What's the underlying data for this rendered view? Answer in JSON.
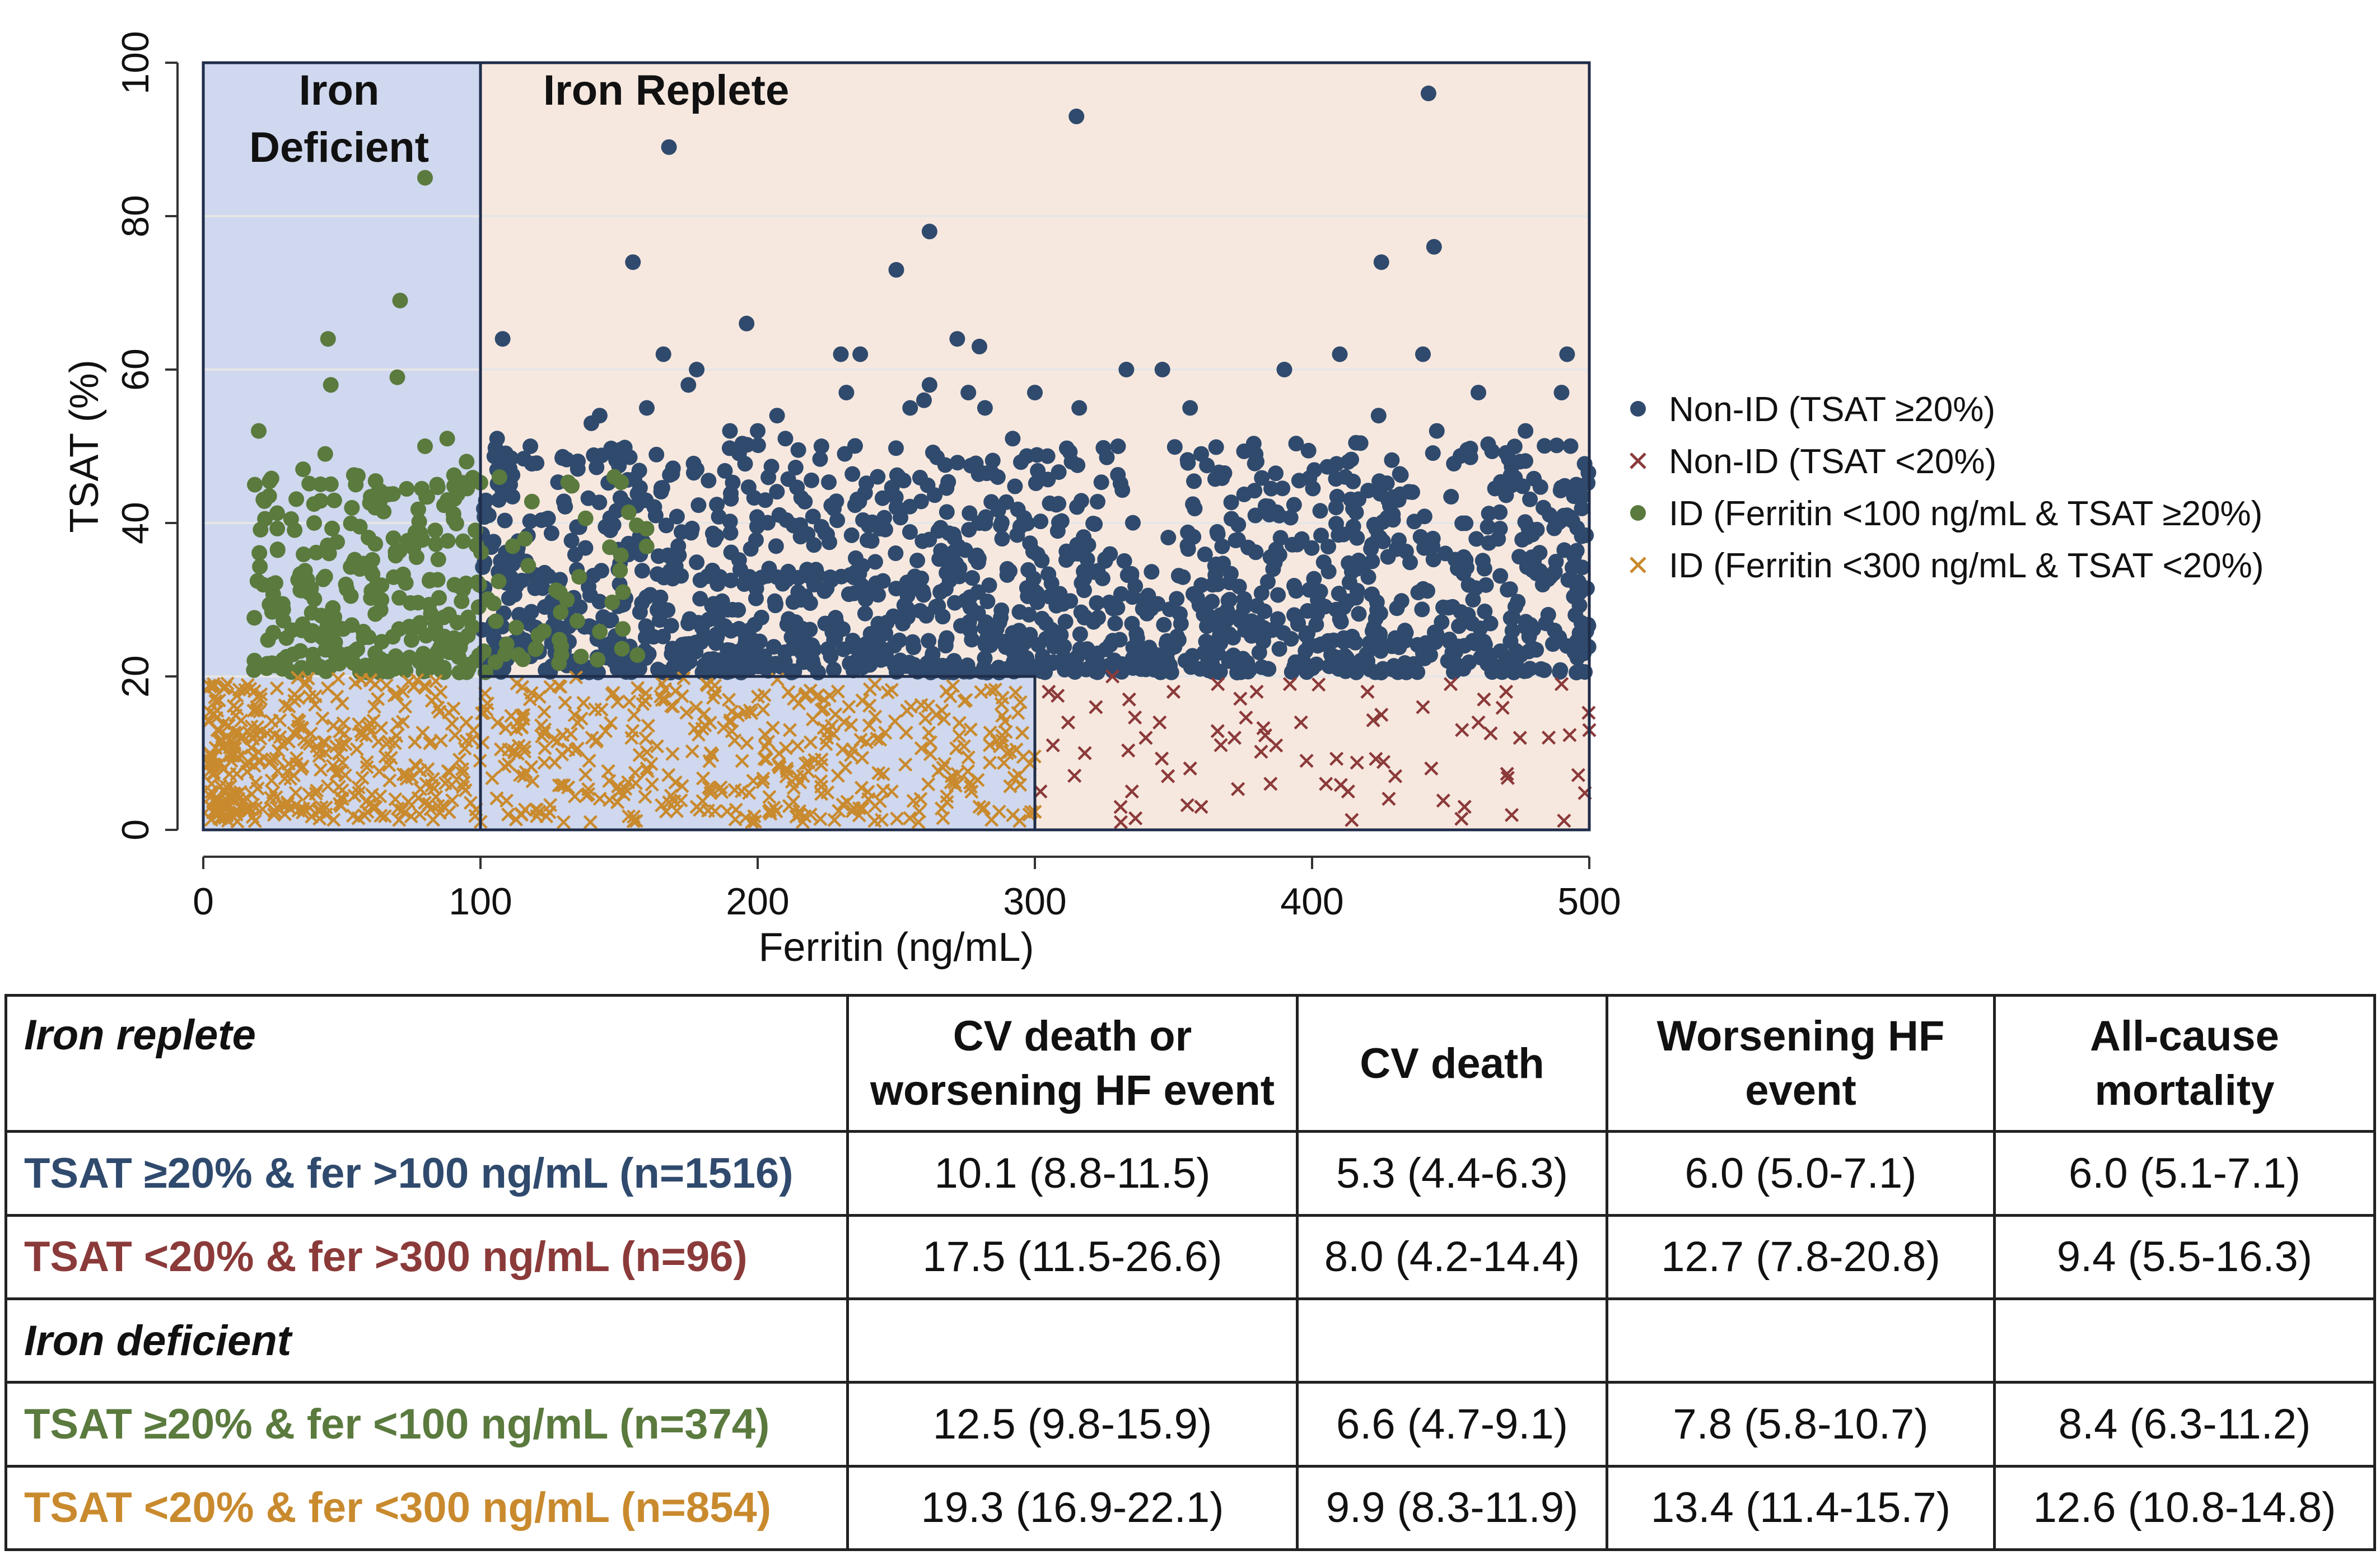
{
  "chart_data": {
    "type": "scatter",
    "title": "",
    "xlabel": "Ferritin (ng/mL)",
    "ylabel": "TSAT (%)",
    "xlim": [
      0,
      500
    ],
    "ylim": [
      0,
      100
    ],
    "x_ticks": [
      0,
      100,
      200,
      300,
      400,
      500
    ],
    "y_ticks": [
      0,
      20,
      40,
      60,
      80,
      100
    ],
    "grid": true,
    "legend_position": "right",
    "regions": [
      {
        "name": "Iron Deficient",
        "label_lines": [
          "Iron",
          "Deficient"
        ],
        "x_range": [
          0,
          100
        ],
        "y_range": [
          0,
          100
        ],
        "color": "#cfd8ee"
      },
      {
        "name": "Iron Deficient (low TSAT)",
        "x_range": [
          100,
          300
        ],
        "y_range": [
          0,
          20
        ],
        "color": "#cfd8ee"
      },
      {
        "name": "Iron Replete",
        "label_lines": [
          "Iron Replete"
        ],
        "x_range": [
          100,
          500
        ],
        "y_range": [
          20,
          100
        ],
        "color": "#f7e8df"
      },
      {
        "name": "Iron Replete (low TSAT)",
        "x_range": [
          300,
          500
        ],
        "y_range": [
          0,
          20
        ],
        "color": "#f7e8df"
      }
    ],
    "series": [
      {
        "name": "Non-ID (TSAT ≥20%)",
        "legend_label": "Non-ID (TSAT ≥20%)",
        "marker": "circle",
        "color": "#2f4a6d",
        "n": 1516,
        "points": [
          [
            168,
            89
          ],
          [
            315,
            93
          ],
          [
            442,
            96
          ],
          [
            444,
            76
          ],
          [
            155,
            74
          ],
          [
            262,
            78
          ],
          [
            250,
            73
          ],
          [
            425,
            74
          ],
          [
            108,
            64
          ],
          [
            196,
            66
          ],
          [
            272,
            64
          ],
          [
            280,
            63
          ],
          [
            166,
            62
          ],
          [
            230,
            62
          ],
          [
            237,
            62
          ],
          [
            410,
            62
          ],
          [
            440,
            62
          ],
          [
            492,
            62
          ],
          [
            178,
            60
          ],
          [
            346,
            60
          ],
          [
            333,
            60
          ],
          [
            390,
            60
          ],
          [
            175,
            58
          ],
          [
            262,
            58
          ],
          [
            232,
            57
          ],
          [
            276,
            57
          ],
          [
            300,
            57
          ],
          [
            460,
            57
          ],
          [
            490,
            57
          ],
          [
            260,
            56
          ],
          [
            160,
            55
          ],
          [
            255,
            55
          ],
          [
            282,
            55
          ],
          [
            316,
            55
          ],
          [
            356,
            55
          ],
          [
            424,
            54
          ],
          [
            143,
            54
          ],
          [
            207,
            54
          ],
          [
            140,
            53
          ],
          [
            190,
            52
          ],
          [
            200,
            52
          ],
          [
            445,
            52
          ],
          [
            477,
            52
          ],
          [
            106,
            51
          ],
          [
            118,
            50
          ],
          [
            210,
            51
          ],
          [
            292,
            51
          ],
          [
            330,
            50
          ],
          [
            223,
            50
          ],
          [
            475,
            48
          ],
          [
            135,
            48
          ],
          [
            150,
            48
          ],
          [
            360,
            49
          ],
          [
            380,
            48
          ],
          [
            412,
            46
          ],
          [
            488,
            40
          ],
          [
            492,
            41
          ],
          [
            480,
            35
          ],
          [
            486,
            33
          ],
          [
            495,
            28
          ],
          [
            498,
            23
          ],
          [
            470,
            22
          ],
          [
            455,
            24
          ],
          [
            440,
            23
          ],
          [
            430,
            25
          ],
          [
            420,
            22
          ],
          [
            402,
            24
          ],
          [
            384,
            21
          ],
          [
            370,
            22
          ]
        ],
        "cloud": {
          "x_range": [
            100,
            500
          ],
          "y_range": [
            20,
            50
          ],
          "count": 1450
        }
      },
      {
        "name": "Non-ID (TSAT <20%)",
        "legend_label": "Non-ID (TSAT <20%)",
        "marker": "x",
        "color": "#8b3a3a",
        "n": 96,
        "points": [
          [
            305,
            18
          ],
          [
            312,
            14
          ],
          [
            318,
            10
          ],
          [
            302,
            5
          ],
          [
            328,
            20
          ],
          [
            334,
            17
          ],
          [
            340,
            12
          ],
          [
            331,
            1
          ],
          [
            350,
            18
          ],
          [
            345,
            14
          ],
          [
            356,
            8
          ],
          [
            366,
            19
          ],
          [
            372,
            12
          ],
          [
            380,
            18
          ],
          [
            385,
            6
          ],
          [
            392,
            19
          ],
          [
            396,
            14
          ],
          [
            405,
            6
          ],
          [
            413,
            5
          ],
          [
            420,
            18
          ],
          [
            425,
            15
          ],
          [
            430,
            7
          ],
          [
            440,
            16
          ],
          [
            450,
            19
          ],
          [
            460,
            14
          ],
          [
            455,
            3
          ],
          [
            470,
            18
          ],
          [
            475,
            12
          ],
          [
            490,
            19
          ],
          [
            500,
            13
          ],
          [
            335,
            5
          ],
          [
            348,
            7
          ],
          [
            360,
            3
          ],
          [
            398,
            9
          ],
          [
            462,
            17
          ],
          [
            443,
            8
          ],
          [
            387,
            11
          ],
          [
            322,
            16
          ]
        ],
        "cloud": {
          "x_range": [
            300,
            500
          ],
          "y_range": [
            0,
            20
          ],
          "count": 40
        }
      },
      {
        "name": "ID (Ferritin <100 ng/mL & TSAT ≥20%)",
        "legend_label": "ID (Ferritin <100 ng/mL & TSAT ≥20%)",
        "marker": "circle",
        "color": "#5a7a3e",
        "n": 374,
        "points": [
          [
            80,
            85
          ],
          [
            71,
            69
          ],
          [
            45,
            64
          ],
          [
            46,
            58
          ],
          [
            70,
            59
          ],
          [
            20,
            52
          ],
          [
            44,
            49
          ],
          [
            88,
            51
          ],
          [
            80,
            50
          ],
          [
            95,
            48
          ],
          [
            36,
            47
          ],
          [
            55,
            45
          ],
          [
            40,
            40
          ],
          [
            62,
            42
          ],
          [
            25,
            32
          ],
          [
            30,
            25
          ]
        ],
        "cloud": {
          "x_range": [
            18,
            100
          ],
          "y_range": [
            20,
            46
          ],
          "count": 330
        }
      },
      {
        "name": "ID (Ferritin <300 ng/mL & TSAT <20%)",
        "legend_label": "ID (Ferritin <300 ng/mL & TSAT <20%)",
        "marker": "x",
        "color": "#c98a2e",
        "n": 854,
        "points": [
          [
            3,
            6
          ],
          [
            8,
            4
          ],
          [
            12,
            2
          ],
          [
            110,
            2
          ],
          [
            130,
            1
          ],
          [
            150,
            5
          ],
          [
            178,
            3
          ],
          [
            215,
            2
          ],
          [
            240,
            4
          ],
          [
            258,
            1
          ],
          [
            280,
            3
          ],
          [
            298,
            2
          ],
          [
            290,
            10
          ],
          [
            270,
            7
          ],
          [
            225,
            12
          ],
          [
            190,
            14
          ],
          [
            160,
            8
          ]
        ],
        "cloud": {
          "x_range": [
            2,
            300
          ],
          "y_range": [
            0,
            20
          ],
          "count": 780
        }
      }
    ]
  },
  "table": {
    "headers": [
      "Iron replete",
      "CV death or worsening HF event",
      "CV death",
      "Worsening HF event",
      "All-cause mortality"
    ],
    "header_lines": [
      [
        "Iron replete"
      ],
      [
        "CV death or",
        "worsening HF event"
      ],
      [
        "CV death"
      ],
      [
        "Worsening HF",
        "event"
      ],
      [
        "All-cause",
        "mortality"
      ]
    ],
    "rows": [
      {
        "label": "TSAT ≥20% & fer >100 ng/mL (n=1516)",
        "color": "#2f4a6d",
        "values": [
          "10.1 (8.8-11.5)",
          "5.3 (4.4-6.3)",
          "6.0 (5.0-7.1)",
          "6.0 (5.1-7.1)"
        ]
      },
      {
        "label": "TSAT <20% & fer >300 ng/mL (n=96)",
        "color": "#8b3a3a",
        "values": [
          "17.5 (11.5-26.6)",
          "8.0 (4.2-14.4)",
          "12.7 (7.8-20.8)",
          "9.4 (5.5-16.3)"
        ]
      },
      {
        "section": "Iron deficient"
      },
      {
        "label": "TSAT ≥20% & fer <100 ng/mL (n=374)",
        "color": "#5a7a3e",
        "values": [
          "12.5 (9.8-15.9)",
          "6.6 (4.7-9.1)",
          "7.8 (5.8-10.7)",
          "8.4 (6.3-11.2)"
        ]
      },
      {
        "label": "TSAT <20% & fer <300 ng/mL (n=854)",
        "color": "#c98a2e",
        "values": [
          "19.3 (16.9-22.1)",
          "9.9 (8.3-11.9)",
          "13.4 (11.4-15.7)",
          "12.6 (10.8-14.8)"
        ]
      }
    ]
  }
}
